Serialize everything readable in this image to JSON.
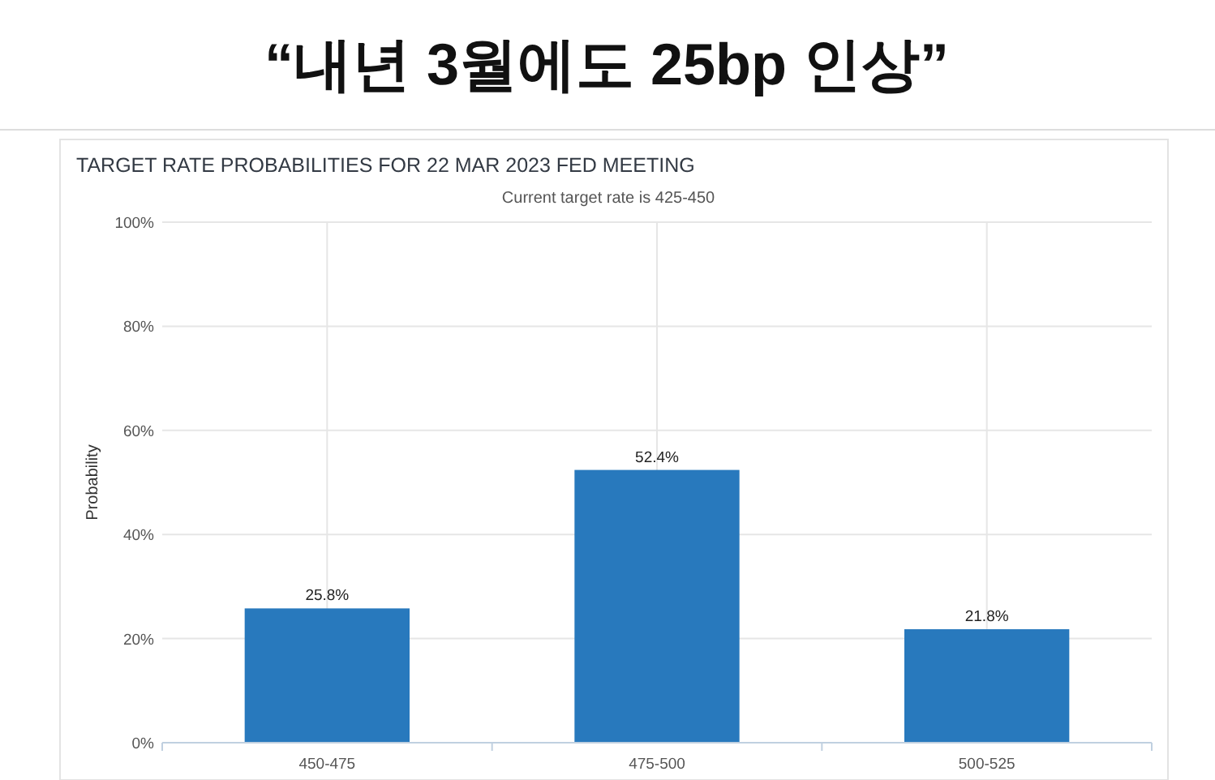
{
  "chart_data": {
    "type": "bar",
    "title": "“내년 3월에도 25bp 인상”",
    "subtitle": "TARGET RATE PROBABILITIES FOR 22 MAR 2023 FED MEETING",
    "annotations": [
      "Current target rate is 425-450"
    ],
    "ylabel": "Probability",
    "categories": [
      "450-475",
      "475-500",
      "500-525"
    ],
    "values": [
      25.8,
      52.4,
      21.8
    ],
    "value_labels": [
      "25.8%",
      "52.4%",
      "21.8%"
    ],
    "color": "#2879bd",
    "ylim": [
      0,
      100
    ],
    "yticks": [
      {
        "value": 0,
        "label": "0%"
      },
      {
        "value": 20,
        "label": "20%"
      },
      {
        "value": 40,
        "label": "40%"
      },
      {
        "value": 60,
        "label": "60%"
      },
      {
        "value": 80,
        "label": "80%"
      },
      {
        "value": 100,
        "label": "100%"
      }
    ],
    "grid": true
  }
}
